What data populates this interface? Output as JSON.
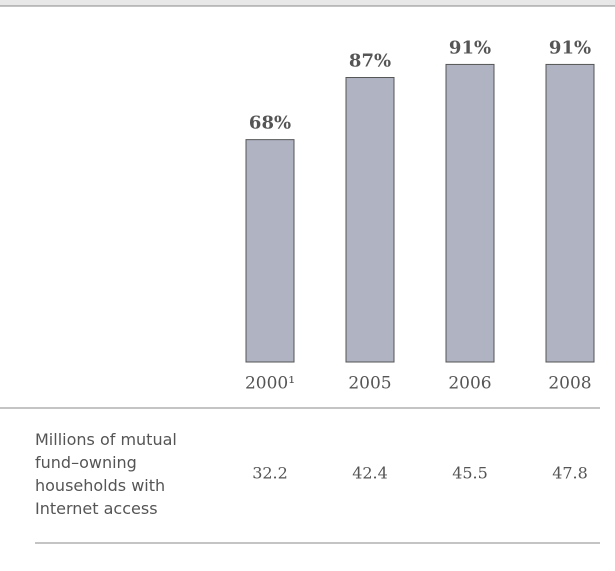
{
  "chart_data": {
    "type": "bar",
    "categories": [
      "2000¹",
      "2005",
      "2006",
      "2008"
    ],
    "values": [
      68,
      87,
      91,
      91
    ],
    "value_labels": [
      "68%",
      "87%",
      "91%",
      "91%"
    ],
    "color": "#b0b3c2",
    "ylim": [
      0,
      100
    ],
    "table": {
      "label": "Millions of mutual fund–owning households with Internet access",
      "values": [
        32.2,
        42.4,
        45.5,
        47.8
      ]
    }
  }
}
